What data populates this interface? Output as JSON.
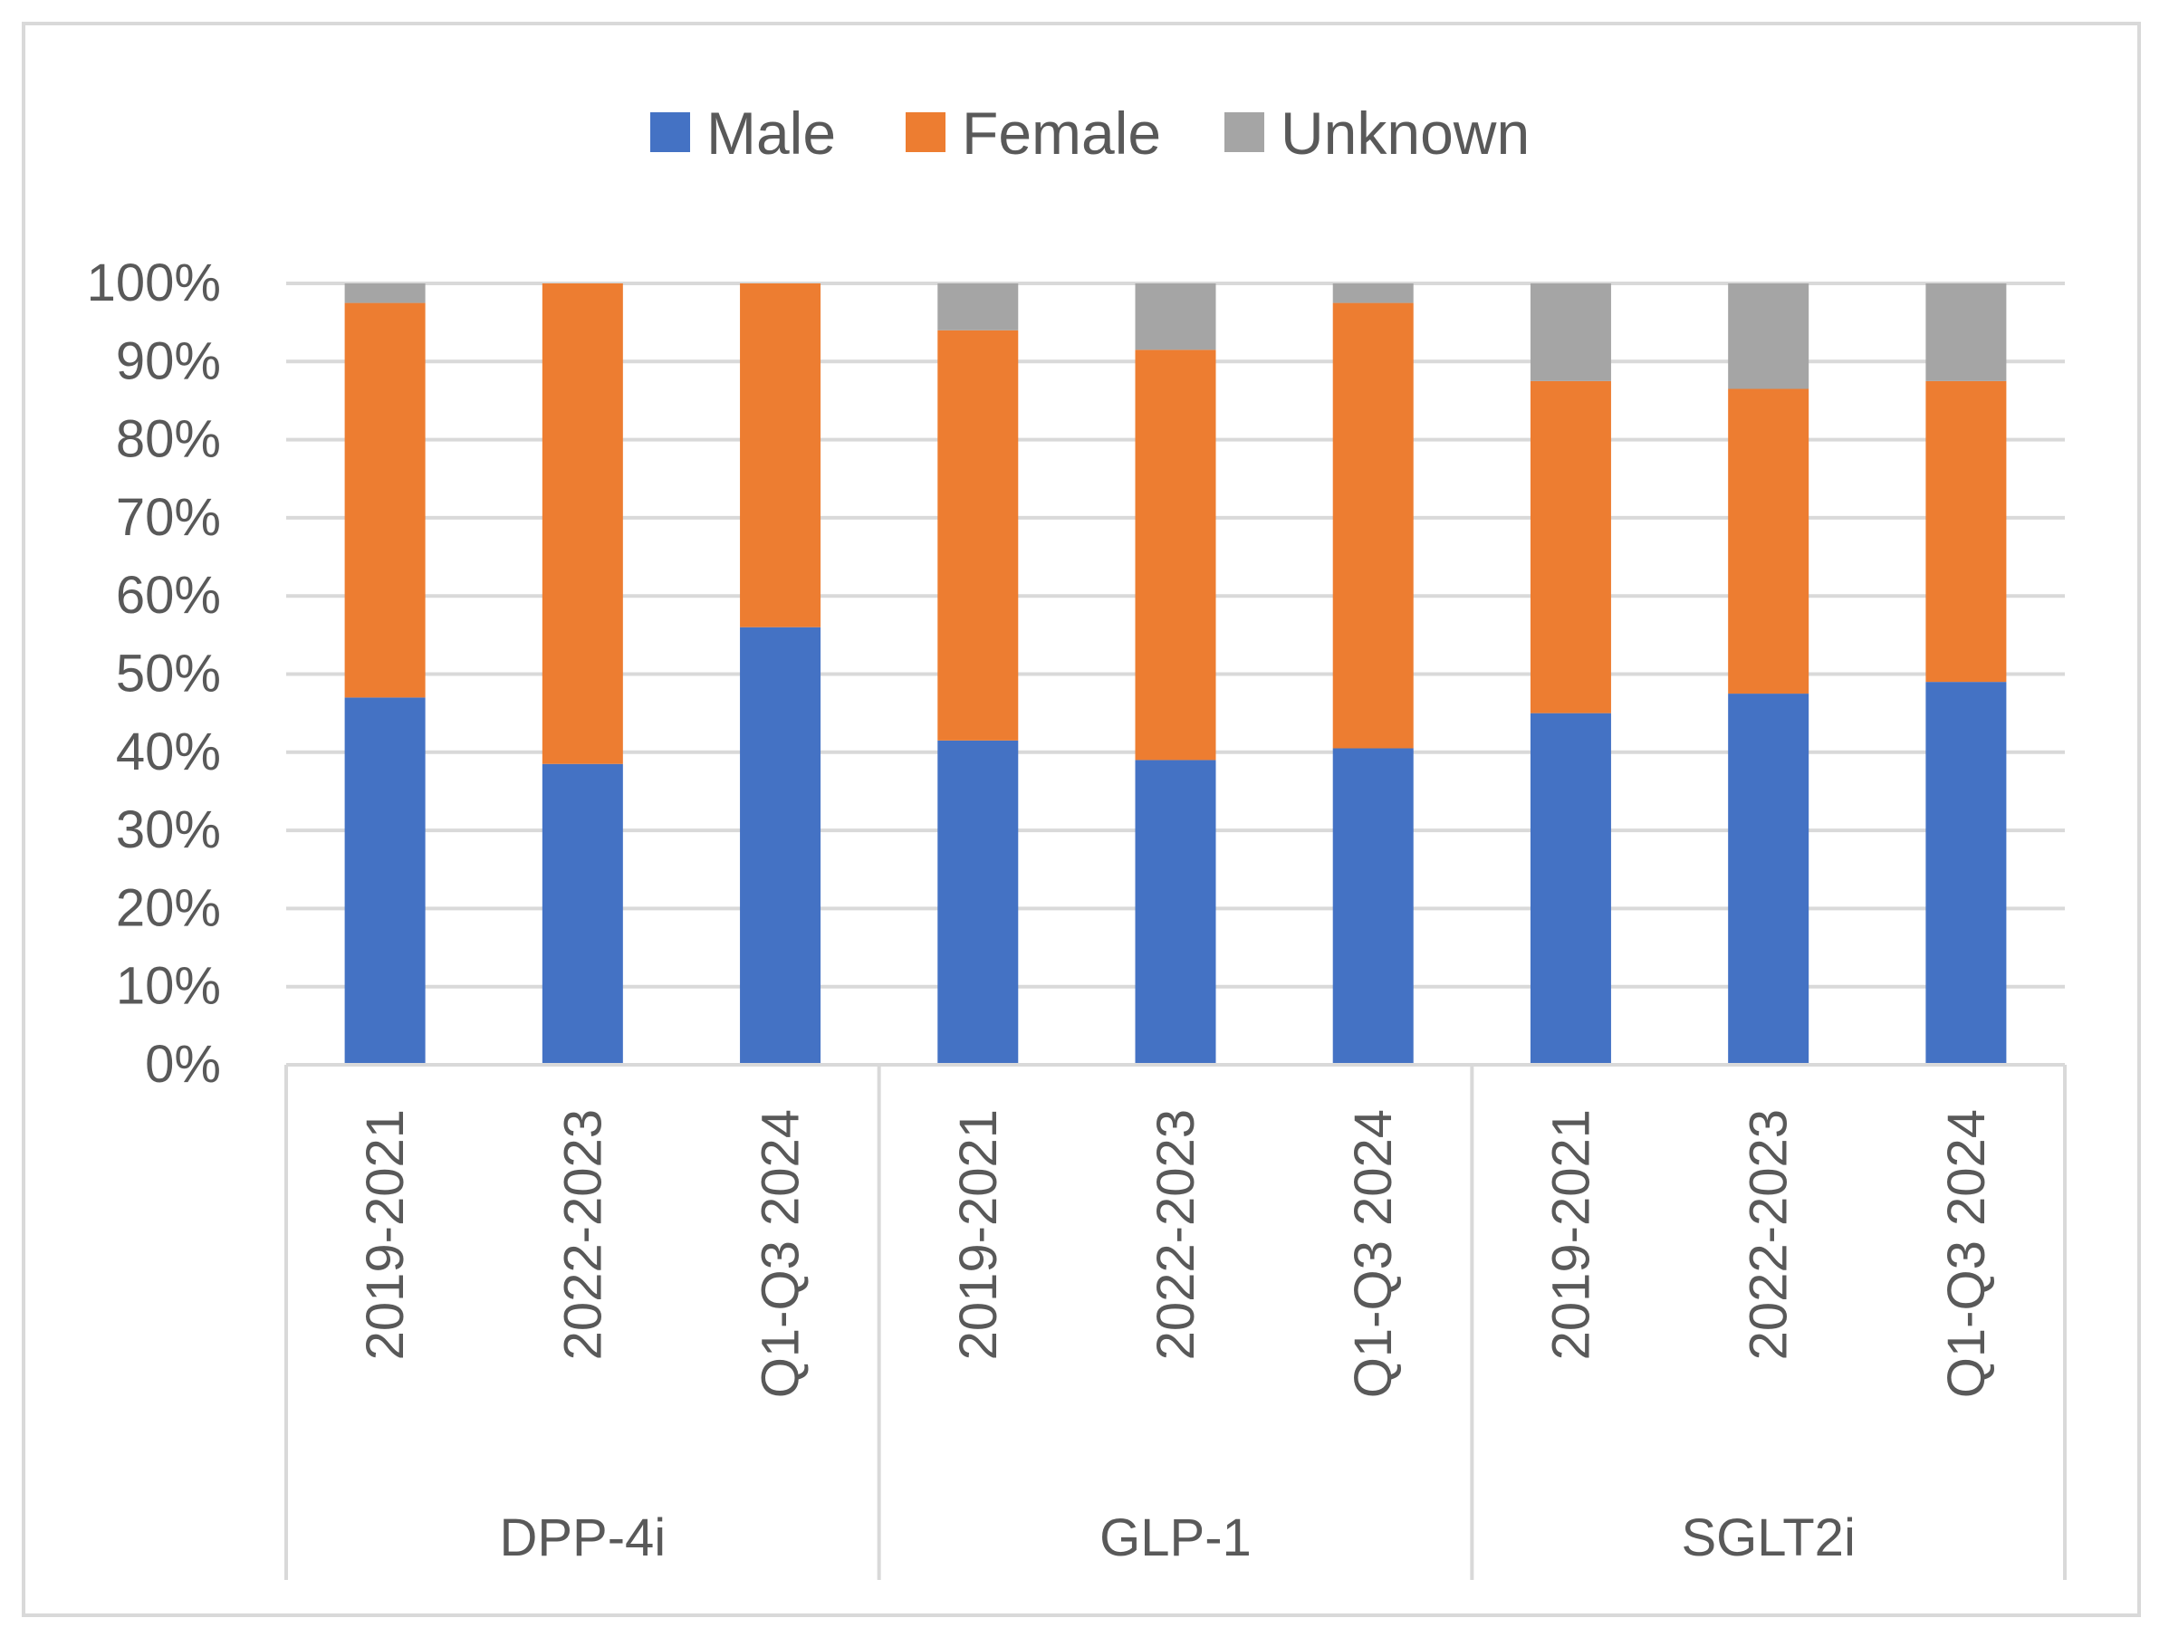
{
  "chart_data": {
    "type": "bar",
    "stacked": true,
    "percent_stacked": true,
    "title": "",
    "xlabel": "",
    "ylabel": "",
    "ylim": [
      0,
      100
    ],
    "yticks": [
      "0%",
      "10%",
      "20%",
      "30%",
      "40%",
      "50%",
      "60%",
      "70%",
      "80%",
      "90%",
      "100%"
    ],
    "grid": true,
    "legend_position": "top-center",
    "groups": [
      {
        "label": "DPP-4i",
        "categories": [
          "2019-2021",
          "2022-2023",
          "Q1-Q3 2024"
        ]
      },
      {
        "label": "GLP-1",
        "categories": [
          "2019-2021",
          "2022-2023",
          "Q1-Q3 2024"
        ]
      },
      {
        "label": "SGLT2i",
        "categories": [
          "2019-2021",
          "2022-2023",
          "Q1-Q3 2024"
        ]
      }
    ],
    "series": [
      {
        "name": "Male",
        "color": "#4472C4",
        "values": [
          47,
          38.5,
          56,
          41.5,
          39,
          40.5,
          45,
          47.5,
          49
        ]
      },
      {
        "name": "Female",
        "color": "#ED7D31",
        "values": [
          50.5,
          61.5,
          44,
          52.5,
          52.5,
          57,
          42.5,
          39,
          38.5
        ]
      },
      {
        "name": "Unknown",
        "color": "#A5A5A5",
        "values": [
          2.5,
          0,
          0,
          6,
          8.5,
          2.5,
          12.5,
          13.5,
          12.5
        ]
      }
    ]
  }
}
